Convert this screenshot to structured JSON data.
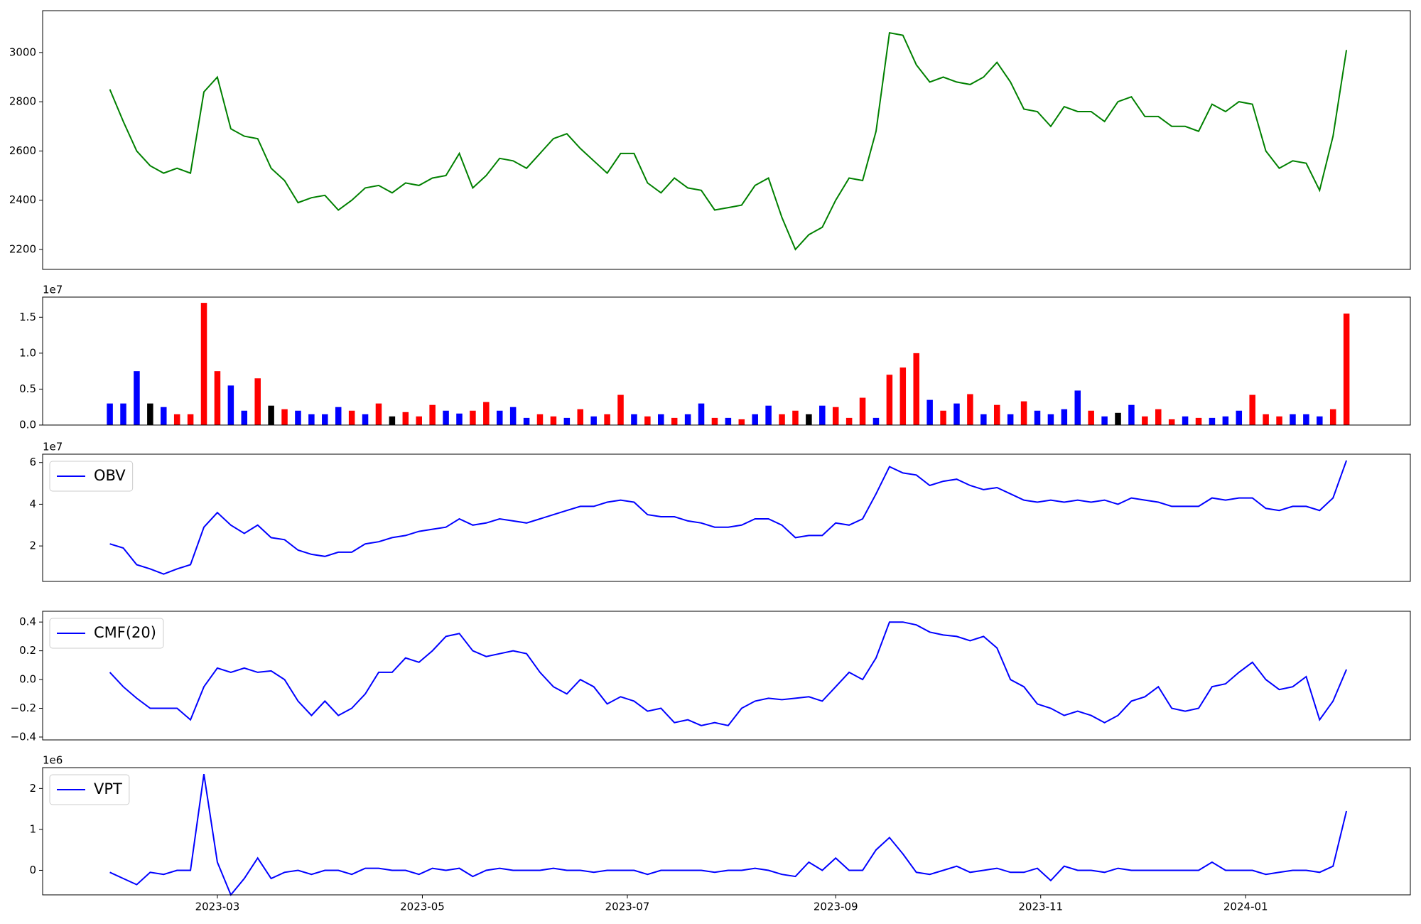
{
  "chart_data": [
    {
      "type": "line",
      "xlim": [
        7,
        414
      ],
      "ylim": [
        2119,
        3170
      ],
      "yticks": [
        2200,
        2400,
        2600,
        2800,
        3000
      ],
      "x": [
        27,
        31,
        35,
        39,
        43,
        47,
        51,
        55,
        59,
        63,
        67,
        71,
        75,
        79,
        83,
        87,
        91,
        95,
        99,
        103,
        107,
        111,
        115,
        119,
        123,
        127,
        131,
        135,
        139,
        143,
        147,
        151,
        155,
        159,
        163,
        167,
        171,
        175,
        179,
        183,
        187,
        191,
        195,
        199,
        203,
        207,
        211,
        215,
        219,
        223,
        227,
        231,
        235,
        239,
        243,
        247,
        251,
        255,
        259,
        263,
        267,
        271,
        275,
        279,
        283,
        287,
        291,
        295,
        299,
        303,
        307,
        311,
        315,
        319,
        323,
        327,
        331,
        335,
        339,
        343,
        347,
        351,
        355,
        359,
        363,
        367,
        371,
        375,
        379,
        383,
        387,
        391,
        395
      ],
      "series": [
        {
          "color": "#008000",
          "values": [
            2850,
            2720,
            2600,
            2540,
            2510,
            2530,
            2510,
            2840,
            2900,
            2690,
            2660,
            2650,
            2530,
            2480,
            2390,
            2410,
            2420,
            2360,
            2400,
            2450,
            2460,
            2430,
            2470,
            2460,
            2490,
            2500,
            2590,
            2450,
            2500,
            2570,
            2560,
            2530,
            2590,
            2650,
            2670,
            2610,
            2560,
            2510,
            2590,
            2590,
            2470,
            2430,
            2490,
            2450,
            2440,
            2360,
            2370,
            2380,
            2460,
            2490,
            2330,
            2200,
            2260,
            2290,
            2400,
            2490,
            2480,
            2680,
            3080,
            3070,
            2950,
            2880,
            2900,
            2880,
            2870,
            2900,
            2960,
            2880,
            2770,
            2760,
            2700,
            2780,
            2760,
            2760,
            2720,
            2800,
            2820,
            2740,
            2740,
            2700,
            2700,
            2680,
            2790,
            2760,
            2800,
            2790,
            2600,
            2530,
            2560,
            2550,
            2440,
            2660,
            3010
          ]
        }
      ]
    },
    {
      "type": "bar",
      "xlim": [
        7,
        414
      ],
      "ylim": [
        0,
        1.78
      ],
      "y_offset_label": "1e7",
      "yticks": [
        {
          "value": 0,
          "label": "0.0"
        },
        {
          "value": 0.5,
          "label": "0.5"
        },
        {
          "value": 1,
          "label": "1.0"
        },
        {
          "value": 1.5,
          "label": "1.5"
        }
      ],
      "x": [
        27,
        31,
        35,
        39,
        43,
        47,
        51,
        55,
        59,
        63,
        67,
        71,
        75,
        79,
        83,
        87,
        91,
        95,
        99,
        103,
        107,
        111,
        115,
        119,
        123,
        127,
        131,
        135,
        139,
        143,
        147,
        151,
        155,
        159,
        163,
        167,
        171,
        175,
        179,
        183,
        187,
        191,
        195,
        199,
        203,
        207,
        211,
        215,
        219,
        223,
        227,
        231,
        235,
        239,
        243,
        247,
        251,
        255,
        259,
        263,
        267,
        271,
        275,
        279,
        283,
        287,
        291,
        295,
        299,
        303,
        307,
        311,
        315,
        319,
        323,
        327,
        331,
        335,
        339,
        343,
        347,
        351,
        355,
        359,
        363,
        367,
        371,
        375,
        379,
        383,
        387,
        391,
        395
      ],
      "series": [
        {
          "values": [
            0.3,
            0.3,
            0.75,
            0.3,
            0.25,
            0.15,
            0.15,
            1.7,
            0.75,
            0.55,
            0.2,
            0.65,
            0.27,
            0.22,
            0.2,
            0.15,
            0.15,
            0.25,
            0.2,
            0.15,
            0.3,
            0.12,
            0.18,
            0.12,
            0.28,
            0.2,
            0.16,
            0.2,
            0.32,
            0.2,
            0.25,
            0.1,
            0.15,
            0.12,
            0.1,
            0.22,
            0.12,
            0.15,
            0.42,
            0.15,
            0.12,
            0.15,
            0.1,
            0.15,
            0.3,
            0.1,
            0.1,
            0.08,
            0.15,
            0.27,
            0.15,
            0.2,
            0.15,
            0.27,
            0.25,
            0.1,
            0.38,
            0.1,
            0.7,
            0.8,
            1.0,
            0.35,
            0.2,
            0.3,
            0.43,
            0.15,
            0.28,
            0.15,
            0.33,
            0.2,
            0.15,
            0.22,
            0.48,
            0.2,
            0.12,
            0.17,
            0.28,
            0.12,
            0.22,
            0.08,
            0.12,
            0.1,
            0.1,
            0.12,
            0.2,
            0.42,
            0.15,
            0.12,
            0.15,
            0.15,
            0.12,
            0.22,
            1.55
          ],
          "colors": [
            "blue",
            "blue",
            "blue",
            "black",
            "blue",
            "red",
            "red",
            "red",
            "red",
            "blue",
            "blue",
            "red",
            "black",
            "red",
            "blue",
            "blue",
            "blue",
            "blue",
            "red",
            "blue",
            "red",
            "black",
            "red",
            "red",
            "red",
            "blue",
            "blue",
            "red",
            "red",
            "blue",
            "blue",
            "blue",
            "red",
            "red",
            "blue",
            "red",
            "blue",
            "red",
            "red",
            "blue",
            "red",
            "blue",
            "red",
            "blue",
            "blue",
            "red",
            "blue",
            "red",
            "blue",
            "blue",
            "red",
            "red",
            "black",
            "blue",
            "red",
            "red",
            "red",
            "blue",
            "red",
            "red",
            "red",
            "blue",
            "red",
            "blue",
            "red",
            "blue",
            "red",
            "blue",
            "red",
            "blue",
            "blue",
            "blue",
            "blue",
            "red",
            "blue",
            "black",
            "blue",
            "red",
            "red",
            "red",
            "blue",
            "red",
            "blue",
            "blue",
            "blue",
            "red",
            "red",
            "red",
            "blue",
            "blue",
            "blue",
            "red",
            "red"
          ]
        }
      ]
    },
    {
      "type": "line",
      "xlim": [
        7,
        414
      ],
      "ylim": [
        0.3,
        6.4
      ],
      "y_offset_label": "1e7",
      "yticks": [
        2,
        4,
        6
      ],
      "legend": "upper left",
      "x": [
        27,
        31,
        35,
        39,
        43,
        47,
        51,
        55,
        59,
        63,
        67,
        71,
        75,
        79,
        83,
        87,
        91,
        95,
        99,
        103,
        107,
        111,
        115,
        119,
        123,
        127,
        131,
        135,
        139,
        143,
        147,
        151,
        155,
        159,
        163,
        167,
        171,
        175,
        179,
        183,
        187,
        191,
        195,
        199,
        203,
        207,
        211,
        215,
        219,
        223,
        227,
        231,
        235,
        239,
        243,
        247,
        251,
        255,
        259,
        263,
        267,
        271,
        275,
        279,
        283,
        287,
        291,
        295,
        299,
        303,
        307,
        311,
        315,
        319,
        323,
        327,
        331,
        335,
        339,
        343,
        347,
        351,
        355,
        359,
        363,
        367,
        371,
        375,
        379,
        383,
        387,
        391,
        395
      ],
      "series": [
        {
          "name": "OBV",
          "color": "#0000ff",
          "values": [
            2.1,
            1.9,
            1.1,
            0.9,
            0.65,
            0.9,
            1.1,
            2.9,
            3.6,
            3.0,
            2.6,
            3.0,
            2.4,
            2.3,
            1.8,
            1.6,
            1.5,
            1.7,
            1.7,
            2.1,
            2.2,
            2.4,
            2.5,
            2.7,
            2.8,
            2.9,
            3.3,
            3.0,
            3.1,
            3.3,
            3.2,
            3.1,
            3.3,
            3.5,
            3.7,
            3.9,
            3.9,
            4.1,
            4.2,
            4.1,
            3.5,
            3.4,
            3.4,
            3.2,
            3.1,
            2.9,
            2.9,
            3.0,
            3.3,
            3.3,
            3.0,
            2.4,
            2.5,
            2.5,
            3.1,
            3.0,
            3.3,
            4.5,
            5.8,
            5.5,
            5.4,
            4.9,
            5.1,
            5.2,
            4.9,
            4.7,
            4.8,
            4.5,
            4.2,
            4.1,
            4.2,
            4.1,
            4.2,
            4.1,
            4.2,
            4.0,
            4.3,
            4.2,
            4.1,
            3.9,
            3.9,
            3.9,
            4.3,
            4.2,
            4.3,
            4.3,
            3.8,
            3.7,
            3.9,
            3.9,
            3.7,
            4.3,
            6.1
          ]
        }
      ]
    },
    {
      "type": "line",
      "xlim": [
        7,
        414
      ],
      "ylim": [
        -0.42,
        0.475
      ],
      "legend": "upper left",
      "yticks": [
        {
          "value": -0.4,
          "label": "−0.4"
        },
        {
          "value": -0.2,
          "label": "−0.2"
        },
        {
          "value": 0,
          "label": "0.0"
        },
        {
          "value": 0.2,
          "label": "0.2"
        },
        {
          "value": 0.4,
          "label": "0.4"
        }
      ],
      "x": [
        27,
        31,
        35,
        39,
        43,
        47,
        51,
        55,
        59,
        63,
        67,
        71,
        75,
        79,
        83,
        87,
        91,
        95,
        99,
        103,
        107,
        111,
        115,
        119,
        123,
        127,
        131,
        135,
        139,
        143,
        147,
        151,
        155,
        159,
        163,
        167,
        171,
        175,
        179,
        183,
        187,
        191,
        195,
        199,
        203,
        207,
        211,
        215,
        219,
        223,
        227,
        231,
        235,
        239,
        243,
        247,
        251,
        255,
        259,
        263,
        267,
        271,
        275,
        279,
        283,
        287,
        291,
        295,
        299,
        303,
        307,
        311,
        315,
        319,
        323,
        327,
        331,
        335,
        339,
        343,
        347,
        351,
        355,
        359,
        363,
        367,
        371,
        375,
        379,
        383,
        387,
        391,
        395
      ],
      "series": [
        {
          "name": "CMF(20)",
          "color": "#0000ff",
          "values": [
            0.05,
            -0.05,
            -0.13,
            -0.2,
            -0.2,
            -0.2,
            -0.28,
            -0.05,
            0.08,
            0.05,
            0.08,
            0.05,
            0.06,
            0.0,
            -0.15,
            -0.25,
            -0.15,
            -0.25,
            -0.2,
            -0.1,
            0.05,
            0.05,
            0.15,
            0.12,
            0.2,
            0.3,
            0.32,
            0.2,
            0.16,
            0.18,
            0.2,
            0.18,
            0.05,
            -0.05,
            -0.1,
            0.0,
            -0.05,
            -0.17,
            -0.12,
            -0.15,
            -0.22,
            -0.2,
            -0.3,
            -0.28,
            -0.32,
            -0.3,
            -0.32,
            -0.2,
            -0.15,
            -0.13,
            -0.14,
            -0.13,
            -0.12,
            -0.15,
            -0.05,
            0.05,
            0.0,
            0.15,
            0.4,
            0.4,
            0.38,
            0.33,
            0.31,
            0.3,
            0.27,
            0.3,
            0.22,
            0.0,
            -0.05,
            -0.17,
            -0.2,
            -0.25,
            -0.22,
            -0.25,
            -0.3,
            -0.25,
            -0.15,
            -0.12,
            -0.05,
            -0.2,
            -0.22,
            -0.2,
            -0.05,
            -0.03,
            0.05,
            0.12,
            0.0,
            -0.07,
            -0.05,
            0.02,
            -0.28,
            -0.15,
            0.07
          ]
        }
      ]
    },
    {
      "type": "line",
      "xlim": [
        7,
        414
      ],
      "ylim": [
        -0.6,
        2.51
      ],
      "y_offset_label": "1e6",
      "yticks": [
        0,
        1,
        2
      ],
      "legend": "upper left",
      "xticks": [
        {
          "value": 59,
          "label": "2023-03"
        },
        {
          "value": 120,
          "label": "2023-05"
        },
        {
          "value": 181,
          "label": "2023-07"
        },
        {
          "value": 243,
          "label": "2023-09"
        },
        {
          "value": 304,
          "label": "2023-11"
        },
        {
          "value": 365,
          "label": "2024-01"
        }
      ],
      "x": [
        27,
        31,
        35,
        39,
        43,
        47,
        51,
        55,
        59,
        63,
        67,
        71,
        75,
        79,
        83,
        87,
        91,
        95,
        99,
        103,
        107,
        111,
        115,
        119,
        123,
        127,
        131,
        135,
        139,
        143,
        147,
        151,
        155,
        159,
        163,
        167,
        171,
        175,
        179,
        183,
        187,
        191,
        195,
        199,
        203,
        207,
        211,
        215,
        219,
        223,
        227,
        231,
        235,
        239,
        243,
        247,
        251,
        255,
        259,
        263,
        267,
        271,
        275,
        279,
        283,
        287,
        291,
        295,
        299,
        303,
        307,
        311,
        315,
        319,
        323,
        327,
        331,
        335,
        339,
        343,
        347,
        351,
        355,
        359,
        363,
        367,
        371,
        375,
        379,
        383,
        387,
        391,
        395
      ],
      "series": [
        {
          "name": "VPT",
          "color": "#0000ff",
          "values": [
            -0.05,
            -0.2,
            -0.35,
            -0.05,
            -0.1,
            0.0,
            0.0,
            2.35,
            0.2,
            -0.6,
            -0.2,
            0.3,
            -0.2,
            -0.05,
            0.0,
            -0.1,
            0.0,
            0.0,
            -0.1,
            0.05,
            0.05,
            0.0,
            0.0,
            -0.1,
            0.05,
            0.0,
            0.05,
            -0.15,
            0.0,
            0.05,
            0.0,
            0.0,
            0.0,
            0.05,
            0.0,
            0.0,
            -0.05,
            0.0,
            0.0,
            0.0,
            -0.1,
            0.0,
            0.0,
            0.0,
            0.0,
            -0.05,
            0.0,
            0.0,
            0.05,
            0.0,
            -0.1,
            -0.15,
            0.2,
            0.0,
            0.3,
            0.0,
            0.0,
            0.5,
            0.8,
            0.4,
            -0.05,
            -0.1,
            0.0,
            0.1,
            -0.05,
            0.0,
            0.05,
            -0.05,
            -0.05,
            0.05,
            -0.25,
            0.1,
            0.0,
            0.0,
            -0.05,
            0.05,
            0.0,
            0.0,
            0.0,
            0.0,
            0.0,
            0.0,
            0.2,
            0.0,
            0.0,
            0.0,
            -0.1,
            -0.05,
            0.0,
            0.0,
            -0.05,
            0.1,
            1.45
          ]
        }
      ]
    }
  ]
}
